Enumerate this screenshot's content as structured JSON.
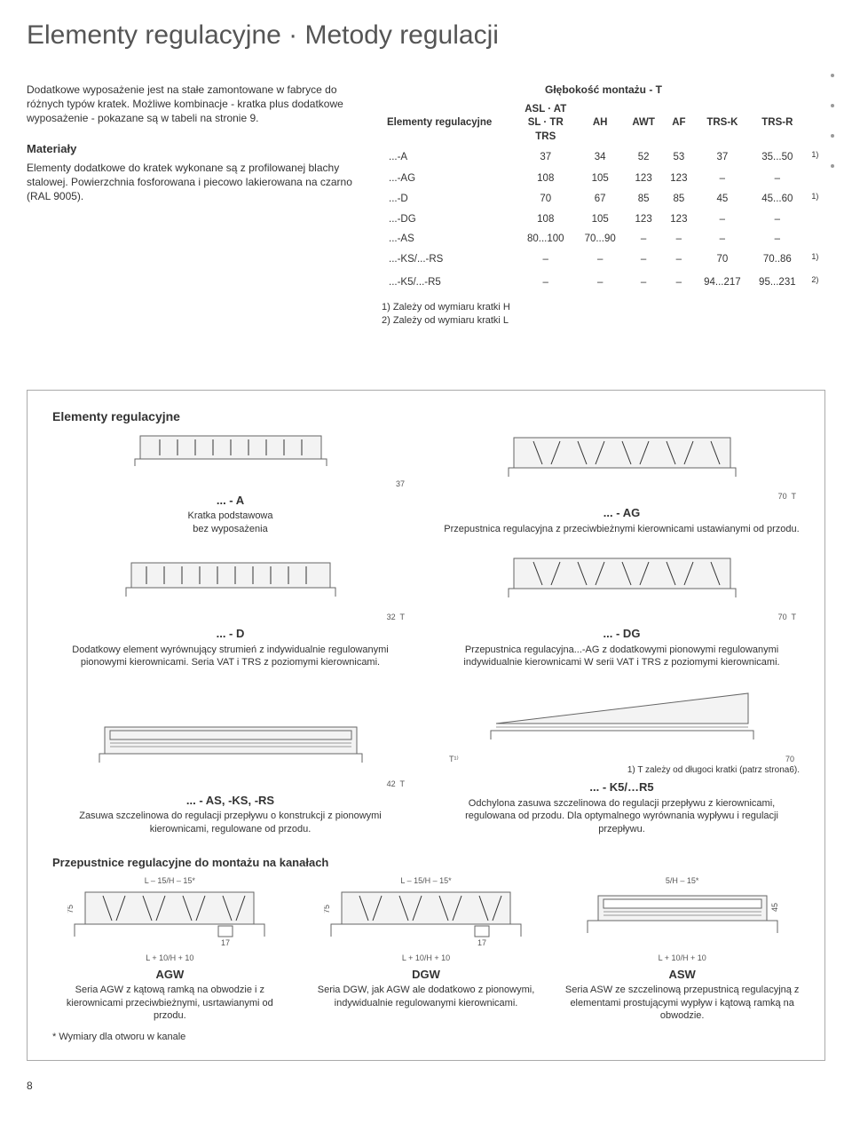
{
  "page": {
    "title": "Elementy regulacyjne · Metody regulacji",
    "page_number": "8"
  },
  "intro": {
    "p1": "Dodatkowe wyposażenie jest na stałe zamontowane w fabryce do różnych typów kratek. Możliwe kombinacje - kratka plus dodatkowe wyposażenie - pokazane są w tabeli na stronie 9.",
    "h2": "Materiały",
    "p2": "Elementy dodatkowe do kratek wykonane są z profilowanej blachy stalowej. Powierzchnia fosforowana i piecowo lakierowana na czarno (RAL 9005)."
  },
  "table": {
    "caption": "Głębokość montażu - T",
    "row_header": "Elementy regulacyjne",
    "col0": "ASL · AT\nSL · TR\nTRS",
    "cols": [
      "AH",
      "AWT",
      "AF",
      "TRS-K",
      "TRS-R"
    ],
    "rows": [
      {
        "k": "...-A",
        "v": [
          "37",
          "34",
          "52",
          "53",
          "37",
          "35...50"
        ],
        "note": "1)"
      },
      {
        "k": "...-AG",
        "v": [
          "108",
          "105",
          "123",
          "123",
          "–",
          "–"
        ],
        "note": ""
      },
      {
        "k": "...-D",
        "v": [
          "70",
          "67",
          "85",
          "85",
          "45",
          "45...60"
        ],
        "note": "1)"
      },
      {
        "k": "...-DG",
        "v": [
          "108",
          "105",
          "123",
          "123",
          "–",
          "–"
        ],
        "note": ""
      },
      {
        "k": "...-AS",
        "v": [
          "80...100",
          "70...90",
          "–",
          "–",
          "–",
          "–"
        ],
        "note": ""
      },
      {
        "k": "...-KS/...-RS",
        "v": [
          "–",
          "–",
          "–",
          "–",
          "70",
          "70..86"
        ],
        "note": "1)"
      },
      {
        "k": "...-K5/...-R5",
        "v": [
          "–",
          "–",
          "–",
          "–",
          "94...217",
          "95...231"
        ],
        "note": "2)"
      }
    ],
    "footnotes": [
      "1) Zależy od wymiaru kratki H",
      "2) Zależy od wymiaru kratki L"
    ]
  },
  "figures": {
    "section_title": "Elementy regulacyjne",
    "a": {
      "title": "... - A",
      "caption": "Kratka podstawowa\nbez wyposażenia",
      "dim": "37"
    },
    "ag": {
      "title": "... - AG",
      "caption": "Przepustnica regulacyjna z przeciwbieżnymi kierownicami ustawianymi od przodu.",
      "dim": "70",
      "dim2": "T"
    },
    "d": {
      "title": "... - D",
      "caption": "Dodatkowy element wyrównujący strumień z indywidualnie regulowanymi pionowymi kierownicami. Seria VAT i TRS z poziomymi kierownicami.",
      "dim": "32",
      "dim2": "T"
    },
    "dg": {
      "title": "... - DG",
      "caption": "Przepustnica regulacyjna...-AG z dodatkowymi pionowymi regulowanymi indywidualnie kierownicami W serii VAT i TRS z poziomymi kierownicami.",
      "dim": "70",
      "dim2": "T"
    },
    "as": {
      "title": "... - AS, -KS, -RS",
      "caption": "Zasuwa szczelinowa do regulacji przepływu o konstrukcji z pionowymi kierownicami, regulowane od przodu.",
      "dim": "42",
      "dim2": "T"
    },
    "k5": {
      "title": "... - K5/…R5",
      "pre": "1) T zależy od długoci kratki (patrz strona6).",
      "caption": "Odchylona zasuwa szczelinowa do regulacji przepływu z kierownicami, regulowana od przodu. Dla optymalnego wyrównania wypływu i regulacji przepływu.",
      "dim": "T¹⁾",
      "dim2": "70"
    },
    "duct_title": "Przepustnice regulacyjne do montażu na kanałach",
    "agw": {
      "title": "AGW",
      "top": "L – 15/H – 15*",
      "side": "75",
      "notch": "17",
      "bottom": "L + 10/H + 10",
      "caption": "Seria AGW z kątową ramką na obwodzie i z kierownicami przeciwbieżnymi, usrtawianymi od przodu."
    },
    "dgw": {
      "title": "DGW",
      "top": "L – 15/H – 15*",
      "side": "75",
      "notch": "17",
      "bottom": "L + 10/H + 10",
      "caption": "Seria DGW, jak AGW ale dodatkowo z pionowymi, indywidualnie regulowanymi kierownicami."
    },
    "asw": {
      "title": "ASW",
      "top": "5/H – 15*",
      "side": "45",
      "bottom": "L + 10/H + 10",
      "caption": "Seria ASW ze szczelinową przepustnicą regulacyjną z elementami prostującymi wypływ i kątową ramką na obwodzie."
    },
    "asterisk": "* Wymiary dla otworu w kanale"
  },
  "colors": {
    "text": "#333333",
    "muted": "#555555",
    "border": "#aaaaaa",
    "line": "#666666",
    "fill": "#f3f3f3"
  }
}
